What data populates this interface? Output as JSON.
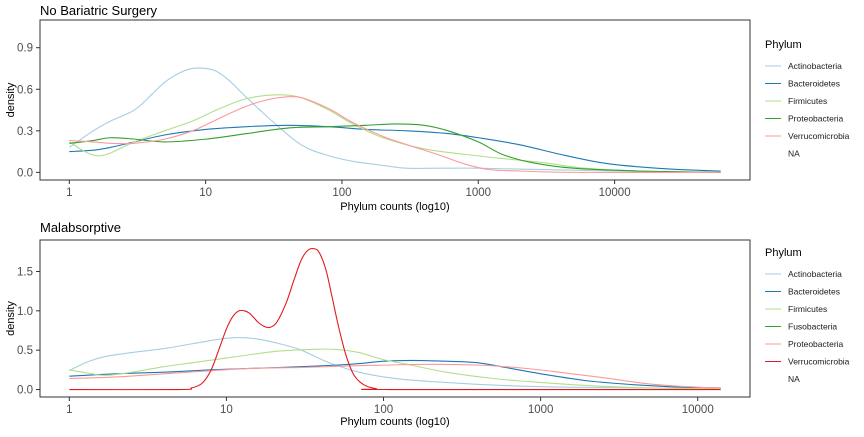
{
  "chart_data": [
    {
      "type": "line",
      "title": "No Bariatric Surgery",
      "xlabel": "Phylum counts (log10)",
      "ylabel": "density",
      "x_scale": "log10",
      "xlim": [
        1,
        60000
      ],
      "ylim": [
        0,
        1.1
      ],
      "x_ticks": [
        {
          "value": 1,
          "label": "1"
        },
        {
          "value": 10,
          "label": "10"
        },
        {
          "value": 100,
          "label": "100"
        },
        {
          "value": 1000,
          "label": "1000"
        },
        {
          "value": 10000,
          "label": "10000"
        }
      ],
      "y_ticks": [
        {
          "value": 0,
          "label": "0.0"
        },
        {
          "value": 0.3,
          "label": "0.3"
        },
        {
          "value": 0.6,
          "label": "0.6"
        },
        {
          "value": 0.9,
          "label": "0.9"
        }
      ],
      "grid": false,
      "legend": {
        "title": "Phylum",
        "position": "right",
        "na_label": "NA"
      },
      "series": [
        {
          "name": "Actinobacteria",
          "color": "#a6cee3",
          "points": [
            [
              1,
              0.18
            ],
            [
              1.5,
              0.3
            ],
            [
              2,
              0.37
            ],
            [
              3,
              0.45
            ],
            [
              4,
              0.56
            ],
            [
              5,
              0.65
            ],
            [
              6.5,
              0.72
            ],
            [
              8,
              0.75
            ],
            [
              10,
              0.75
            ],
            [
              12,
              0.73
            ],
            [
              15,
              0.66
            ],
            [
              20,
              0.54
            ],
            [
              30,
              0.38
            ],
            [
              50,
              0.2
            ],
            [
              80,
              0.12
            ],
            [
              120,
              0.08
            ],
            [
              200,
              0.05
            ],
            [
              300,
              0.03
            ],
            [
              500,
              0.03
            ],
            [
              1000,
              0.03
            ],
            [
              3000,
              0.02
            ],
            [
              10000,
              0.01
            ],
            [
              60000,
              0.0
            ]
          ]
        },
        {
          "name": "Bacteroidetes",
          "color": "#1f78b4",
          "points": [
            [
              1,
              0.15
            ],
            [
              1.5,
              0.16
            ],
            [
              2,
              0.18
            ],
            [
              3,
              0.22
            ],
            [
              5,
              0.27
            ],
            [
              10,
              0.31
            ],
            [
              20,
              0.33
            ],
            [
              40,
              0.34
            ],
            [
              80,
              0.33
            ],
            [
              150,
              0.31
            ],
            [
              300,
              0.3
            ],
            [
              600,
              0.28
            ],
            [
              1000,
              0.25
            ],
            [
              2000,
              0.2
            ],
            [
              4000,
              0.13
            ],
            [
              8000,
              0.07
            ],
            [
              15000,
              0.04
            ],
            [
              30000,
              0.02
            ],
            [
              60000,
              0.01
            ]
          ]
        },
        {
          "name": "Firmicutes",
          "color": "#b2df8a",
          "points": [
            [
              1,
              0.22
            ],
            [
              1.3,
              0.15
            ],
            [
              1.6,
              0.12
            ],
            [
              2,
              0.14
            ],
            [
              3,
              0.22
            ],
            [
              5,
              0.3
            ],
            [
              8,
              0.37
            ],
            [
              12,
              0.45
            ],
            [
              18,
              0.52
            ],
            [
              25,
              0.55
            ],
            [
              35,
              0.56
            ],
            [
              50,
              0.54
            ],
            [
              80,
              0.45
            ],
            [
              120,
              0.35
            ],
            [
              200,
              0.25
            ],
            [
              400,
              0.17
            ],
            [
              800,
              0.13
            ],
            [
              1500,
              0.1
            ],
            [
              3000,
              0.07
            ],
            [
              6000,
              0.03
            ],
            [
              15000,
              0.01
            ],
            [
              60000,
              0.0
            ]
          ]
        },
        {
          "name": "Proteobacteria",
          "color": "#33a02c",
          "points": [
            [
              1,
              0.21
            ],
            [
              1.5,
              0.23
            ],
            [
              2,
              0.25
            ],
            [
              3,
              0.24
            ],
            [
              5,
              0.22
            ],
            [
              10,
              0.24
            ],
            [
              20,
              0.28
            ],
            [
              40,
              0.32
            ],
            [
              80,
              0.33
            ],
            [
              150,
              0.34
            ],
            [
              250,
              0.35
            ],
            [
              400,
              0.34
            ],
            [
              600,
              0.3
            ],
            [
              1000,
              0.22
            ],
            [
              1500,
              0.13
            ],
            [
              2500,
              0.07
            ],
            [
              5000,
              0.03
            ],
            [
              15000,
              0.01
            ],
            [
              60000,
              0.0
            ]
          ]
        },
        {
          "name": "Verrucomicrobia",
          "color": "#fb9a99",
          "points": [
            [
              1,
              0.23
            ],
            [
              1.5,
              0.22
            ],
            [
              2,
              0.21
            ],
            [
              3,
              0.21
            ],
            [
              5,
              0.24
            ],
            [
              8,
              0.3
            ],
            [
              12,
              0.38
            ],
            [
              18,
              0.46
            ],
            [
              25,
              0.51
            ],
            [
              35,
              0.54
            ],
            [
              50,
              0.54
            ],
            [
              80,
              0.46
            ],
            [
              120,
              0.36
            ],
            [
              200,
              0.26
            ],
            [
              300,
              0.2
            ],
            [
              500,
              0.13
            ],
            [
              800,
              0.06
            ],
            [
              1200,
              0.02
            ],
            [
              2000,
              0.01
            ],
            [
              5000,
              0.0
            ],
            [
              60000,
              0.0
            ]
          ]
        }
      ]
    },
    {
      "type": "line",
      "title": "Malabsorptive",
      "xlabel": "Phylum counts (log10)",
      "ylabel": "density",
      "x_scale": "log10",
      "xlim": [
        1,
        14000
      ],
      "ylim": [
        0,
        1.9
      ],
      "x_ticks": [
        {
          "value": 1,
          "label": "1"
        },
        {
          "value": 10,
          "label": "10"
        },
        {
          "value": 100,
          "label": "100"
        },
        {
          "value": 1000,
          "label": "1000"
        },
        {
          "value": 10000,
          "label": "10000"
        }
      ],
      "y_ticks": [
        {
          "value": 0,
          "label": "0.0"
        },
        {
          "value": 0.5,
          "label": "0.5"
        },
        {
          "value": 1.0,
          "label": "1.0"
        },
        {
          "value": 1.5,
          "label": "1.5"
        }
      ],
      "grid": false,
      "legend": {
        "title": "Phylum",
        "position": "right",
        "na_label": "NA"
      },
      "series": [
        {
          "name": "Actinobacteria",
          "color": "#a6cee3",
          "points": [
            [
              1,
              0.24
            ],
            [
              1.3,
              0.35
            ],
            [
              1.7,
              0.42
            ],
            [
              2.5,
              0.47
            ],
            [
              4,
              0.52
            ],
            [
              6,
              0.58
            ],
            [
              9,
              0.64
            ],
            [
              12,
              0.66
            ],
            [
              16,
              0.64
            ],
            [
              22,
              0.58
            ],
            [
              30,
              0.5
            ],
            [
              45,
              0.34
            ],
            [
              70,
              0.22
            ],
            [
              100,
              0.16
            ],
            [
              150,
              0.12
            ],
            [
              300,
              0.08
            ],
            [
              600,
              0.05
            ],
            [
              1500,
              0.03
            ],
            [
              5000,
              0.02
            ],
            [
              14000,
              0.01
            ]
          ]
        },
        {
          "name": "Bacteroidetes",
          "color": "#1f78b4",
          "points": [
            [
              1,
              0.17
            ],
            [
              2,
              0.2
            ],
            [
              4,
              0.22
            ],
            [
              8,
              0.25
            ],
            [
              15,
              0.27
            ],
            [
              30,
              0.29
            ],
            [
              50,
              0.31
            ],
            [
              70,
              0.33
            ],
            [
              100,
              0.36
            ],
            [
              150,
              0.37
            ],
            [
              250,
              0.36
            ],
            [
              400,
              0.34
            ],
            [
              600,
              0.28
            ],
            [
              1000,
              0.2
            ],
            [
              2000,
              0.11
            ],
            [
              4000,
              0.06
            ],
            [
              8000,
              0.03
            ],
            [
              14000,
              0.02
            ]
          ]
        },
        {
          "name": "Firmicutes",
          "color": "#b2df8a",
          "points": [
            [
              1,
              0.25
            ],
            [
              1.3,
              0.21
            ],
            [
              1.7,
              0.18
            ],
            [
              2.5,
              0.22
            ],
            [
              4,
              0.29
            ],
            [
              6,
              0.34
            ],
            [
              10,
              0.4
            ],
            [
              15,
              0.45
            ],
            [
              22,
              0.49
            ],
            [
              35,
              0.51
            ],
            [
              50,
              0.51
            ],
            [
              70,
              0.47
            ],
            [
              100,
              0.38
            ],
            [
              150,
              0.31
            ],
            [
              250,
              0.22
            ],
            [
              500,
              0.14
            ],
            [
              1000,
              0.09
            ],
            [
              2000,
              0.05
            ],
            [
              5000,
              0.02
            ],
            [
              14000,
              0.01
            ]
          ]
        },
        {
          "name": "Fusobacteria",
          "color": "#33a02c",
          "points": []
        },
        {
          "name": "Proteobacteria",
          "color": "#fb9a99",
          "points": [
            [
              1,
              0.14
            ],
            [
              2,
              0.16
            ],
            [
              4,
              0.2
            ],
            [
              8,
              0.24
            ],
            [
              15,
              0.27
            ],
            [
              30,
              0.28
            ],
            [
              60,
              0.3
            ],
            [
              100,
              0.31
            ],
            [
              200,
              0.32
            ],
            [
              400,
              0.31
            ],
            [
              700,
              0.28
            ],
            [
              1200,
              0.23
            ],
            [
              2500,
              0.15
            ],
            [
              5000,
              0.07
            ],
            [
              10000,
              0.03
            ],
            [
              14000,
              0.02
            ]
          ]
        },
        {
          "name": "Verrucomicrobia",
          "color": "#e31a1c",
          "points": [
            [
              1,
              0.0
            ],
            [
              5,
              0.0
            ],
            [
              6,
              0.02
            ],
            [
              7,
              0.08
            ],
            [
              8,
              0.25
            ],
            [
              9,
              0.52
            ],
            [
              10,
              0.77
            ],
            [
              11,
              0.93
            ],
            [
              12,
              1.0
            ],
            [
              13,
              1.0
            ],
            [
              14,
              0.97
            ],
            [
              15,
              0.91
            ],
            [
              16,
              0.85
            ],
            [
              17.5,
              0.8
            ],
            [
              19,
              0.79
            ],
            [
              21,
              0.86
            ],
            [
              24,
              1.1
            ],
            [
              27,
              1.4
            ],
            [
              30,
              1.65
            ],
            [
              33,
              1.77
            ],
            [
              36,
              1.79
            ],
            [
              39,
              1.74
            ],
            [
              43,
              1.52
            ],
            [
              47,
              1.18
            ],
            [
              52,
              0.78
            ],
            [
              58,
              0.42
            ],
            [
              65,
              0.18
            ],
            [
              75,
              0.06
            ],
            [
              90,
              0.01
            ],
            [
              110,
              0.0
            ],
            [
              14000,
              0.0
            ]
          ]
        }
      ]
    }
  ]
}
